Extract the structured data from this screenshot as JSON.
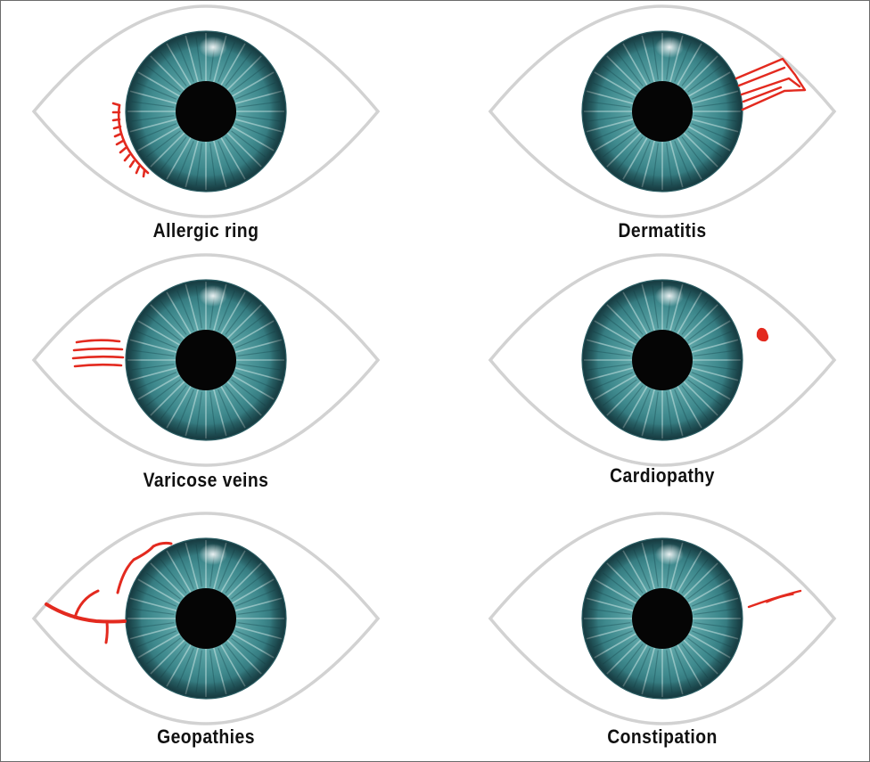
{
  "colors": {
    "lid_outline": "#d2d2d2",
    "iris_dark": "#1f5f64",
    "iris_mid": "#3f8a8e",
    "iris_light": "#9cd0cf",
    "pupil": "#050505",
    "mark": "#e32a1f"
  },
  "panels": [
    {
      "id": "allergic-ring",
      "label": "Allergic ring",
      "mark": "fringe-arc-left"
    },
    {
      "id": "dermatitis",
      "label": "Dermatitis",
      "mark": "streak-bundle-right"
    },
    {
      "id": "varicose-veins",
      "label": "Varicose veins",
      "mark": "parallel-lines-left"
    },
    {
      "id": "cardiopathy",
      "label": "Cardiopathy",
      "mark": "spot-right"
    },
    {
      "id": "geopathies",
      "label": "Geopathies",
      "mark": "branching-vein-left"
    },
    {
      "id": "constipation",
      "label": "Constipation",
      "mark": "thin-line-right"
    }
  ]
}
